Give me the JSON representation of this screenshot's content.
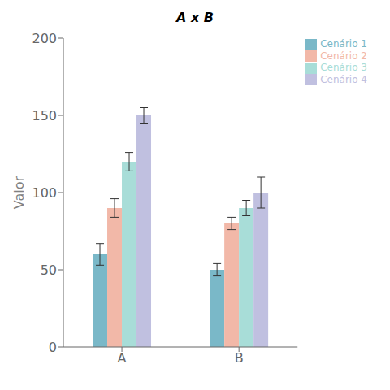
{
  "chart_data": {
    "type": "bar",
    "title": "A x B",
    "ylabel": "Valor",
    "categories": [
      "A",
      "B"
    ],
    "series": [
      {
        "name": "Cenário 1",
        "color": "#7ab8c8",
        "values": [
          60,
          50
        ],
        "errors": [
          7,
          4
        ]
      },
      {
        "name": "Cenário 2",
        "color": "#f2b8a8",
        "values": [
          90,
          80
        ],
        "errors": [
          6,
          4
        ]
      },
      {
        "name": "Cenário 3",
        "color": "#a8ddd8",
        "values": [
          120,
          90
        ],
        "errors": [
          6,
          5
        ]
      },
      {
        "name": "Cenário 4",
        "color": "#c0c0e0",
        "values": [
          150,
          100
        ],
        "errors": [
          5,
          10
        ]
      }
    ],
    "ylim": [
      0,
      200
    ],
    "yticks": [
      0,
      50,
      100,
      150,
      200
    ],
    "grid": false,
    "legend": "upper right"
  }
}
